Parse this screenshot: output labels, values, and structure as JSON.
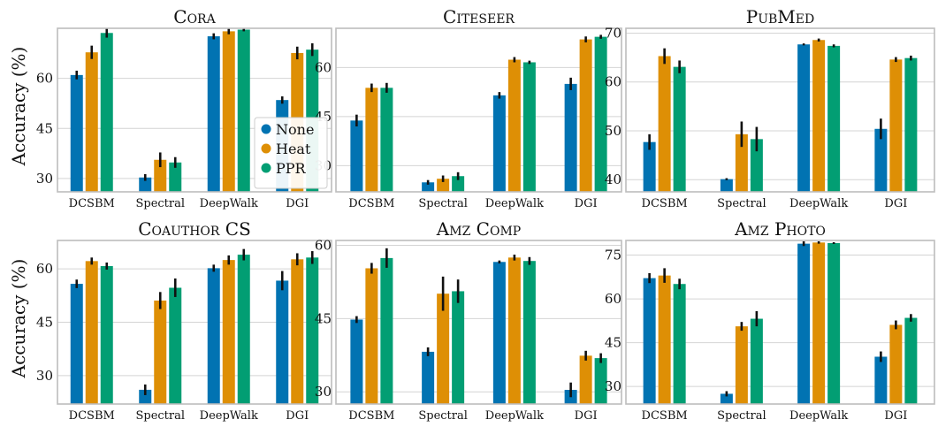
{
  "figure": {
    "ylabel": "Accuracy (%)"
  },
  "legend": {
    "placement": "inside first panel, lower-right",
    "items": [
      {
        "name": "None",
        "color": "#0173b2"
      },
      {
        "name": "Heat",
        "color": "#de8f05"
      },
      {
        "name": "PPR",
        "color": "#029e73"
      }
    ]
  },
  "chart_data": [
    {
      "type": "bar",
      "title": "Cora",
      "categories": [
        "DCSBM",
        "Spectral",
        "DeepWalk",
        "DGI"
      ],
      "ylim": [
        26,
        75
      ],
      "yticks": [
        30,
        45,
        60
      ],
      "series": [
        {
          "name": "None",
          "values": [
            61.0,
            30.3,
            72.6,
            53.5
          ],
          "errors": [
            1.3,
            1.0,
            0.9,
            1.1
          ]
        },
        {
          "name": "Heat",
          "values": [
            67.8,
            35.6,
            74.1,
            67.6
          ],
          "errors": [
            2.0,
            2.2,
            0.9,
            1.9
          ]
        },
        {
          "name": "PPR",
          "values": [
            73.6,
            34.8,
            74.6,
            68.6
          ],
          "errors": [
            1.4,
            1.6,
            0.5,
            1.9
          ]
        }
      ]
    },
    {
      "type": "bar",
      "title": "Citeseer",
      "categories": [
        "DCSBM",
        "Spectral",
        "DeepWalk",
        "DGI"
      ],
      "ylim": [
        22,
        72
      ],
      "yticks": [
        30,
        45,
        60
      ],
      "series": [
        {
          "name": "None",
          "values": [
            43.8,
            24.9,
            51.5,
            55.0
          ],
          "errors": [
            1.8,
            0.7,
            1.0,
            1.9
          ]
        },
        {
          "name": "Heat",
          "values": [
            53.8,
            26.0,
            62.4,
            68.6
          ],
          "errors": [
            1.3,
            1.0,
            0.8,
            0.9
          ]
        },
        {
          "name": "PPR",
          "values": [
            53.8,
            26.8,
            61.6,
            69.4
          ],
          "errors": [
            1.5,
            1.2,
            0.5,
            0.6
          ]
        }
      ]
    },
    {
      "type": "bar",
      "title": "PubMed",
      "categories": [
        "DCSBM",
        "Spectral",
        "DeepWalk",
        "DGI"
      ],
      "ylim": [
        37.5,
        71
      ],
      "yticks": [
        40,
        50,
        60,
        70
      ],
      "series": [
        {
          "name": "None",
          "values": [
            47.7,
            40.1,
            67.7,
            50.4
          ],
          "errors": [
            1.6,
            0.2,
            0.2,
            2.1
          ]
        },
        {
          "name": "Heat",
          "values": [
            65.3,
            49.3,
            68.6,
            64.6
          ],
          "errors": [
            1.6,
            2.6,
            0.3,
            0.5
          ]
        },
        {
          "name": "PPR",
          "values": [
            63.1,
            48.3,
            67.4,
            64.9
          ],
          "errors": [
            1.3,
            2.5,
            0.3,
            0.5
          ]
        }
      ]
    },
    {
      "type": "bar",
      "title": "Coauthor CS",
      "categories": [
        "DCSBM",
        "Spectral",
        "DeepWalk",
        "DGI"
      ],
      "ylim": [
        22,
        68
      ],
      "yticks": [
        30,
        45,
        60
      ],
      "series": [
        {
          "name": "None",
          "values": [
            55.8,
            26.0,
            60.2,
            56.7
          ],
          "errors": [
            1.2,
            1.5,
            1.0,
            2.7
          ]
        },
        {
          "name": "Heat",
          "values": [
            62.2,
            51.1,
            62.5,
            62.7
          ],
          "errors": [
            1.0,
            2.4,
            1.3,
            1.7
          ]
        },
        {
          "name": "PPR",
          "values": [
            60.8,
            54.7,
            64.0,
            63.2
          ],
          "errors": [
            1.0,
            2.6,
            1.6,
            1.8
          ]
        }
      ]
    },
    {
      "type": "bar",
      "title": "Amz Comp",
      "categories": [
        "DCSBM",
        "Spectral",
        "DeepWalk",
        "DGI"
      ],
      "ylim": [
        27.5,
        61
      ],
      "yticks": [
        30,
        45,
        60
      ],
      "series": [
        {
          "name": "None",
          "values": [
            44.8,
            38.2,
            56.6,
            30.4
          ],
          "errors": [
            0.7,
            0.9,
            0.3,
            1.5
          ]
        },
        {
          "name": "Heat",
          "values": [
            55.3,
            50.1,
            57.5,
            37.4
          ],
          "errors": [
            1.1,
            3.5,
            0.6,
            1.0
          ]
        },
        {
          "name": "PPR",
          "values": [
            57.4,
            50.6,
            56.8,
            36.9
          ],
          "errors": [
            2.0,
            2.4,
            0.8,
            1.0
          ]
        }
      ]
    },
    {
      "type": "bar",
      "title": "Amz Photo",
      "categories": [
        "DCSBM",
        "Spectral",
        "DeepWalk",
        "DGI"
      ],
      "ylim": [
        24,
        80
      ],
      "yticks": [
        30,
        45,
        60,
        75
      ],
      "series": [
        {
          "name": "None",
          "values": [
            67.1,
            27.5,
            78.9,
            40.2
          ],
          "errors": [
            1.7,
            0.9,
            0.8,
            1.8
          ]
        },
        {
          "name": "Heat",
          "values": [
            68.0,
            50.6,
            79.3,
            51.1
          ],
          "errors": [
            2.5,
            1.5,
            0.4,
            1.5
          ]
        },
        {
          "name": "PPR",
          "values": [
            65.1,
            53.2,
            79.1,
            53.5
          ],
          "errors": [
            1.8,
            2.6,
            0.3,
            1.3
          ]
        }
      ]
    }
  ]
}
